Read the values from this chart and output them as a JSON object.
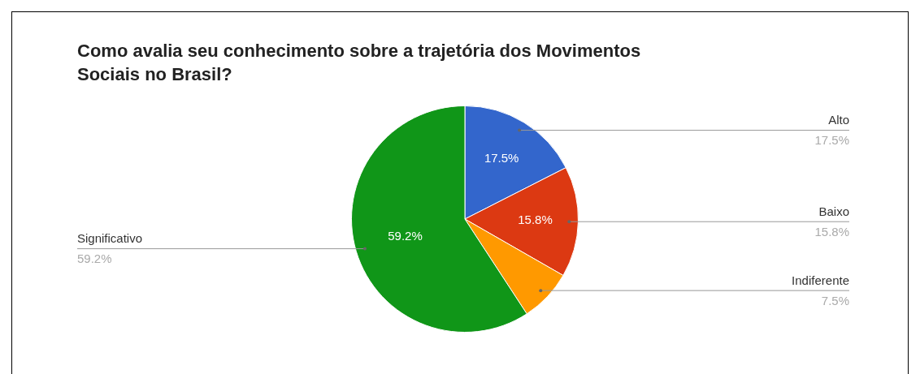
{
  "chart_data": {
    "type": "pie",
    "title": "Como avalia seu conhecimento sobre a trajetória dos Movimentos Sociais no Brasil?",
    "categories": [
      "Alto",
      "Baixo",
      "Indiferente",
      "Significativo"
    ],
    "values": [
      17.5,
      15.8,
      7.5,
      59.2
    ],
    "colors": [
      "#3366cc",
      "#dc3912",
      "#ff9900",
      "#109618"
    ],
    "value_labels": [
      "17.5%",
      "15.8%",
      "7.5%",
      "59.2%"
    ]
  }
}
